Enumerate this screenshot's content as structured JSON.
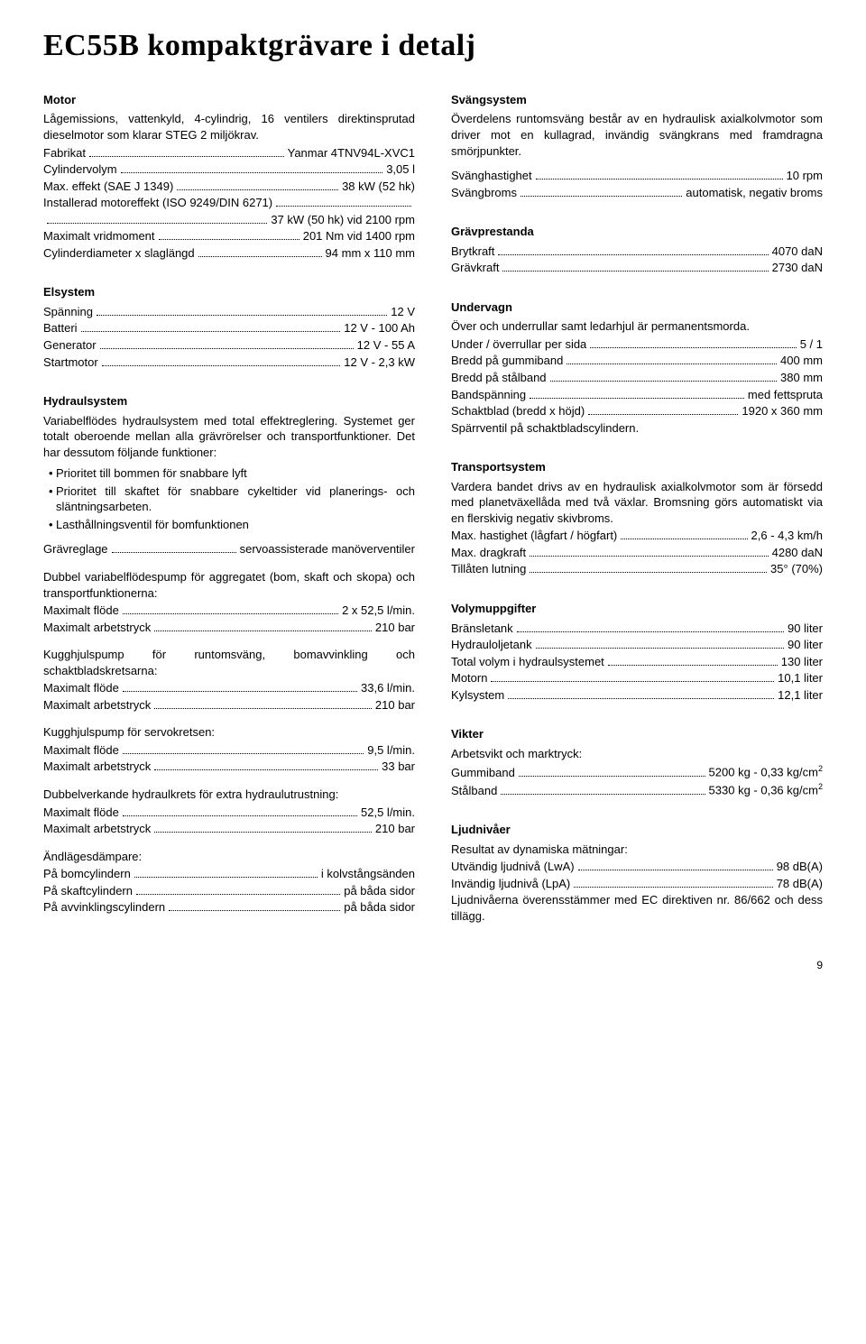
{
  "page_title": "EC55B kompaktgrävare i detalj",
  "page_number": "9",
  "left": {
    "motor": {
      "title": "Motor",
      "intro": "Lågemissions, vattenkyld, 4-cylindrig, 16 ventilers direktinsprutad dieselmotor som klarar STEG 2 miljökrav.",
      "specs": [
        {
          "label": "Fabrikat",
          "value": "Yanmar 4TNV94L-XVC1"
        },
        {
          "label": "Cylindervolym",
          "value": "3,05 l"
        },
        {
          "label": "Max. effekt (SAE J 1349)",
          "value": "38 kW (52 hk)"
        },
        {
          "label": "Installerad motoreffekt (ISO 9249/DIN 6271)",
          "value": ""
        },
        {
          "label": "",
          "value": "37 kW (50 hk) vid 2100 rpm"
        },
        {
          "label": "Maximalt vridmoment",
          "value": "201 Nm vid 1400 rpm"
        },
        {
          "label": "Cylinderdiameter x slaglängd",
          "value": "94 mm x 110 mm"
        }
      ]
    },
    "elsystem": {
      "title": "Elsystem",
      "specs": [
        {
          "label": "Spänning",
          "value": "12 V"
        },
        {
          "label": "Batteri",
          "value": "12 V - 100 Ah"
        },
        {
          "label": "Generator",
          "value": "12 V - 55 A"
        },
        {
          "label": "Startmotor",
          "value": "12 V - 2,3 kW"
        }
      ]
    },
    "hydraul": {
      "title": "Hydraulsystem",
      "intro": "Variabelflödes hydraulsystem med total effektreglering. Systemet ger totalt oberoende mellan alla grävrörelser och transportfunktioner. Det har dessutom följande funktioner:",
      "bullets": [
        "Prioritet till bommen för snabbare lyft",
        "Prioritet till skaftet för snabbare cykeltider vid planerings- och släntningsarbeten.",
        "Lasthållningsventil för bomfunktionen"
      ],
      "grav_reglage": {
        "label": "Grävreglage",
        "value": "servoassisterade manöverventiler"
      },
      "pump1_intro": "Dubbel variabelflödespump för aggregatet (bom, skaft och skopa) och transportfunktionerna:",
      "pump1": [
        {
          "label": "Maximalt flöde",
          "value": "2 x 52,5 l/min."
        },
        {
          "label": "Maximalt arbetstryck",
          "value": "210 bar"
        }
      ],
      "pump2_intro": "Kugghjulspump för runtomsväng, bomavvinkling och schaktbladskretsarna:",
      "pump2": [
        {
          "label": "Maximalt flöde",
          "value": "33,6 l/min."
        },
        {
          "label": "Maximalt arbetstryck",
          "value": "210 bar"
        }
      ],
      "pump3_intro": "Kugghjulspump för servokretsen:",
      "pump3": [
        {
          "label": "Maximalt flöde",
          "value": "9,5 l/min."
        },
        {
          "label": "Maximalt arbetstryck",
          "value": "33 bar"
        }
      ],
      "extra_intro": "Dubbelverkande hydraulkrets för extra hydraulutrustning:",
      "extra": [
        {
          "label": "Maximalt flöde",
          "value": "52,5 l/min."
        },
        {
          "label": "Maximalt arbetstryck",
          "value": "210 bar"
        }
      ],
      "damp_intro": "Ändlägesdämpare:",
      "damp": [
        {
          "label": "På bomcylindern",
          "value": "i kolvstångsänden"
        },
        {
          "label": "På skaftcylindern",
          "value": "på båda sidor"
        },
        {
          "label": "På avvinklingscylindern",
          "value": "på båda sidor"
        }
      ]
    }
  },
  "right": {
    "sving": {
      "title": "Svängsystem",
      "intro": "Överdelens runtomsväng består av en hydraulisk axialkolvmotor som driver mot en kullagrad, invändig svängkrans med framdragna smörjpunkter.",
      "specs": [
        {
          "label": "Svänghastighet",
          "value": "10 rpm"
        },
        {
          "label": "Svängbroms",
          "value": "automatisk, negativ broms"
        }
      ]
    },
    "grav": {
      "title": "Grävprestanda",
      "specs": [
        {
          "label": "Brytkraft",
          "value": "4070 daN"
        },
        {
          "label": "Grävkraft",
          "value": "2730 daN"
        }
      ]
    },
    "under": {
      "title": "Undervagn",
      "intro": "Över och underrullar samt ledarhjul är permanentsmorda.",
      "specs": [
        {
          "label": "Under / överrullar per sida",
          "value": "5 / 1"
        },
        {
          "label": "Bredd på gummiband",
          "value": "400 mm"
        },
        {
          "label": "Bredd på stålband",
          "value": "380 mm"
        },
        {
          "label": "Bandspänning",
          "value": "med fettspruta"
        },
        {
          "label": "Schaktblad (bredd x höjd)",
          "value": "1920 x 360 mm"
        }
      ],
      "outro": "Spärrventil på schaktbladscylindern."
    },
    "transport": {
      "title": "Transportsystem",
      "intro": "Vardera bandet drivs av en hydraulisk axialkolvmotor som är försedd med planetväxellåda med två växlar. Bromsning görs automatiskt via en flerskivig negativ skivbroms.",
      "specs": [
        {
          "label": "Max. hastighet (lågfart / högfart)",
          "value": "2,6 - 4,3 km/h"
        },
        {
          "label": "Max. dragkraft",
          "value": "4280 daN"
        },
        {
          "label": "Tillåten lutning",
          "value": "35° (70%)"
        }
      ]
    },
    "volym": {
      "title": "Volymuppgifter",
      "specs": [
        {
          "label": "Bränsletank",
          "value": "90 liter"
        },
        {
          "label": "Hydrauloljetank",
          "value": "90 liter"
        },
        {
          "label": "Total volym i hydraulsystemet",
          "value": "130 liter"
        },
        {
          "label": "Motorn",
          "value": "10,1 liter"
        },
        {
          "label": "Kylsystem",
          "value": "12,1 liter"
        }
      ]
    },
    "vikter": {
      "title": "Vikter",
      "intro": "Arbetsvikt och marktryck:",
      "specs": [
        {
          "label": "Gummiband",
          "value": "5200 kg - 0,33 kg/cm",
          "sup": "2"
        },
        {
          "label": "Stålband",
          "value": "5330 kg - 0,36 kg/cm",
          "sup": "2"
        }
      ]
    },
    "ljud": {
      "title": "Ljudnivåer",
      "intro": "Resultat av dynamiska mätningar:",
      "specs": [
        {
          "label": "Utvändig ljudnivå (LwA)",
          "value": "98 dB(A)"
        },
        {
          "label": "Invändig ljudnivå (LpA)",
          "value": "78 dB(A)"
        }
      ],
      "outro": "Ljudnivåerna överensstämmer med EC direktiven nr. 86/662 och dess tillägg."
    }
  }
}
